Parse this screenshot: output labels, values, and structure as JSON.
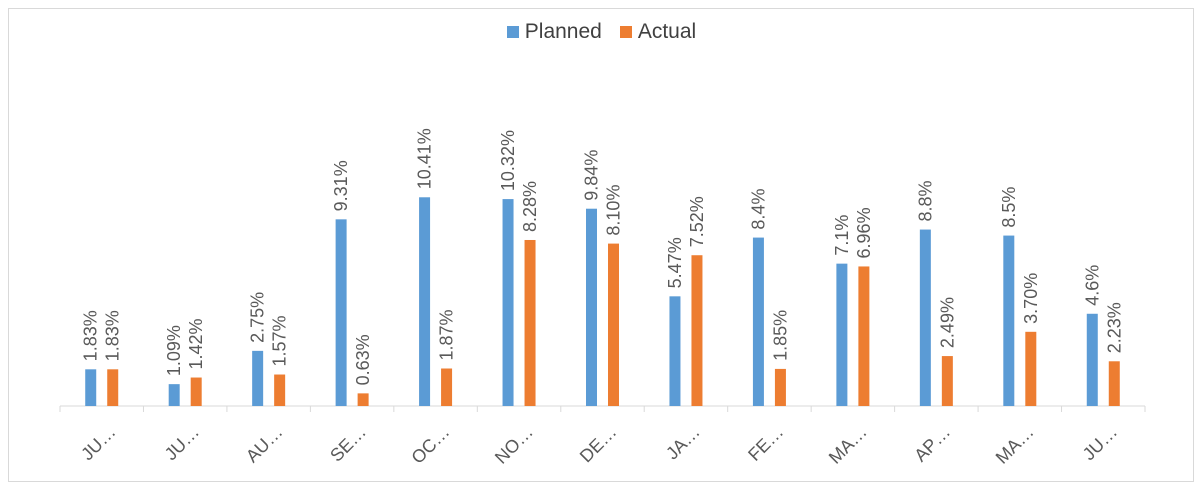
{
  "chart_data": {
    "type": "bar",
    "categories": [
      "JU…",
      "JU…",
      "AU…",
      "SE…",
      "OC…",
      "NO…",
      "DE…",
      "JA…",
      "FE…",
      "MA…",
      "AP…",
      "MA…",
      "JU…"
    ],
    "series": [
      {
        "name": "Planned",
        "color": "#5b9bd5",
        "values": [
          1.83,
          1.09,
          2.75,
          9.31,
          10.41,
          10.32,
          9.84,
          5.47,
          8.4,
          7.1,
          8.8,
          8.5,
          4.6
        ],
        "labels": [
          "1.83%",
          "1.09%",
          "2.75%",
          "9.31%",
          "10.41%",
          "10.32%",
          "9.84%",
          "5.47%",
          "8.4%",
          "7.1%",
          "8.8%",
          "8.5%",
          "4.6%"
        ]
      },
      {
        "name": "Actual",
        "color": "#ed7d31",
        "values": [
          1.83,
          1.42,
          1.57,
          0.63,
          1.87,
          8.28,
          8.1,
          7.52,
          1.85,
          6.96,
          2.49,
          3.7,
          2.23
        ],
        "labels": [
          "1.83%",
          "1.42%",
          "1.57%",
          "0.63%",
          "1.87%",
          "8.28%",
          "8.10%",
          "7.52%",
          "1.85%",
          "6.96%",
          "2.49%",
          "3.70%",
          "2.23%"
        ]
      }
    ],
    "ylim": [
      0,
      11.5
    ],
    "legend_position": "top-center",
    "grid": false,
    "title": "",
    "xlabel": "",
    "ylabel": ""
  }
}
